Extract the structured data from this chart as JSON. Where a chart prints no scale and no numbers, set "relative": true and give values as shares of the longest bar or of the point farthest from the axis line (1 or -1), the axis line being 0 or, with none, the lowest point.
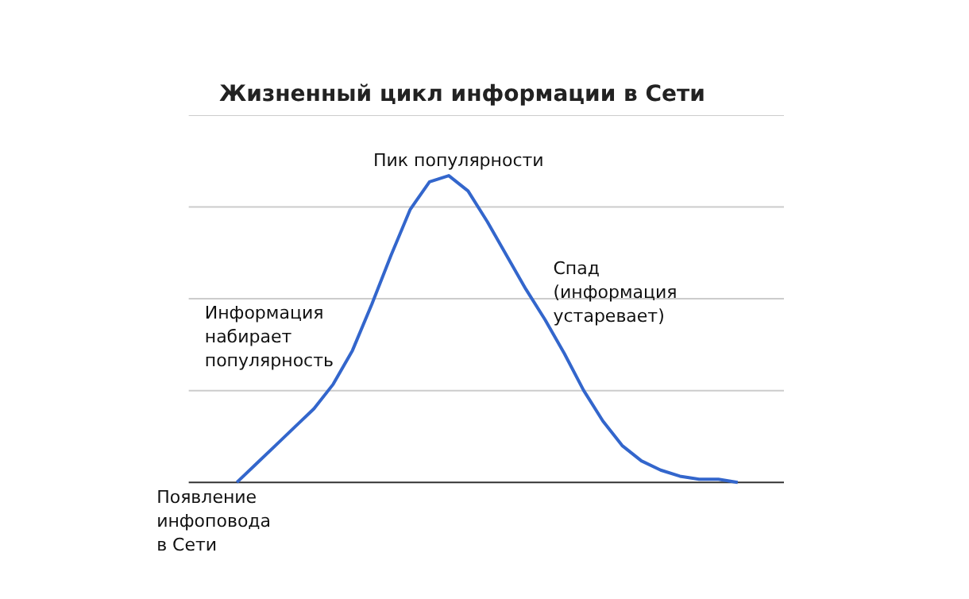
{
  "chart_data": {
    "type": "line",
    "title": "Жизненный цикл информации в Сети",
    "relative": true,
    "grid": "y",
    "categories": [
      null,
      null,
      null,
      null,
      null,
      null,
      null,
      null,
      null,
      null,
      null,
      null,
      null,
      null,
      null,
      null,
      null,
      null,
      null,
      null,
      null,
      null,
      null,
      null,
      null,
      null,
      null
    ],
    "series": [
      {
        "color": "#3366cc",
        "values": [
          0,
          0.06,
          0.12,
          0.18,
          0.24,
          0.32,
          0.43,
          0.58,
          0.74,
          0.89,
          0.98,
          1.0,
          0.95,
          0.85,
          0.74,
          0.63,
          0.53,
          0.42,
          0.3,
          0.2,
          0.12,
          0.07,
          0.04,
          0.02,
          0.01,
          0.01,
          0
        ]
      }
    ],
    "annotations": [
      "Появление\nинфоповода\n в Сети",
      "Информация\nнабирает\nпопулярность",
      "Пик популярности",
      "Спад\n(информация\nустаревает)"
    ]
  }
}
